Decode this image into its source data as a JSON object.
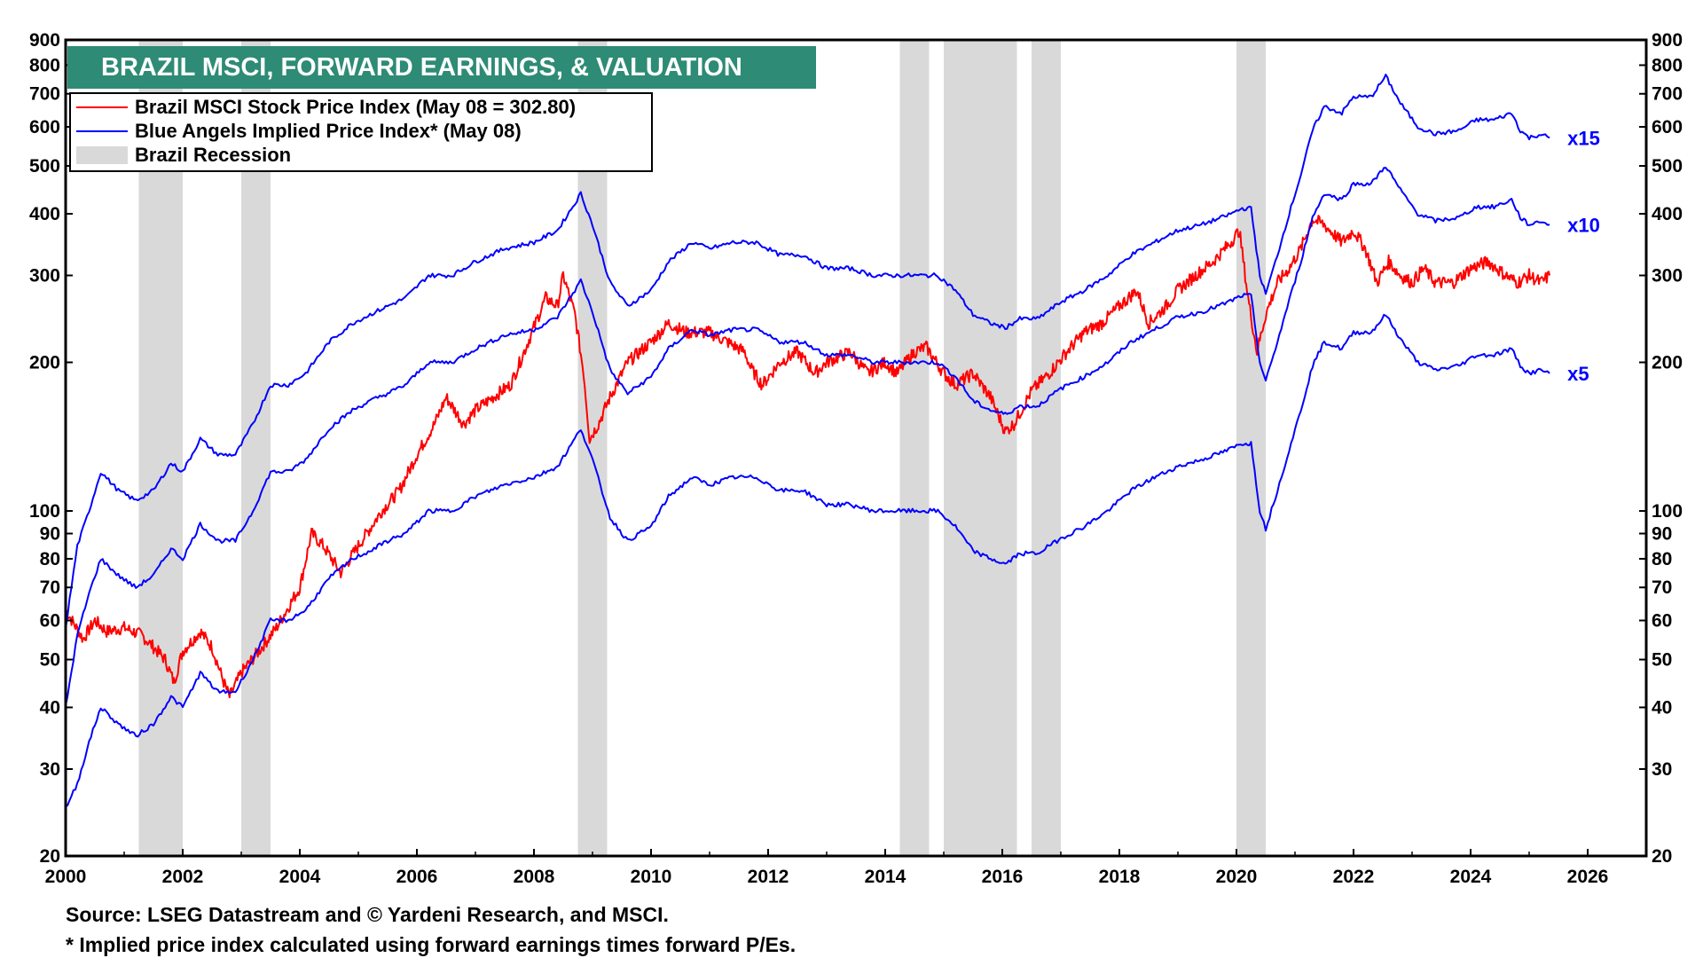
{
  "title": "BRAZIL MSCI, FORWARD EARNINGS, & VALUATION",
  "legend": {
    "items": [
      {
        "label": "Brazil MSCI Stock Price Index (May 08 = 302.80)",
        "color": "#ff0000",
        "kind": "line"
      },
      {
        "label": "Blue Angels Implied Price Index* (May 08)",
        "color": "#0000ff",
        "kind": "line"
      },
      {
        "label": "Brazil Recession",
        "color": "#d9d9d9",
        "kind": "band"
      }
    ]
  },
  "source": "Source: LSEG Datastream and © Yardeni Research, and MSCI.",
  "footnote": "* Implied price index calculated using forward earnings times forward P/Es.",
  "chart_data": {
    "type": "line",
    "title": "BRAZIL MSCI, FORWARD EARNINGS, & VALUATION",
    "y_scale": "log",
    "ylim": [
      20,
      900
    ],
    "xlim": [
      2000,
      2027
    ],
    "x_ticks": [
      2000,
      2002,
      2004,
      2006,
      2008,
      2010,
      2012,
      2014,
      2016,
      2018,
      2020,
      2022,
      2024,
      2026
    ],
    "y_ticks": [
      20,
      30,
      40,
      50,
      60,
      70,
      80,
      90,
      100,
      200,
      300,
      400,
      500,
      600,
      700,
      800,
      900
    ],
    "recessions": [
      [
        2001.25,
        2002.0
      ],
      [
        2003.0,
        2003.5
      ],
      [
        2008.75,
        2009.25
      ],
      [
        2014.25,
        2014.75
      ],
      [
        2015.0,
        2016.25
      ],
      [
        2016.5,
        2017.0
      ],
      [
        2020.0,
        2020.5
      ]
    ],
    "multiple_labels": [
      "x15",
      "x10",
      "x5"
    ],
    "series": [
      {
        "name": "Brazil MSCI Stock Price Index",
        "color": "#ff0000",
        "x": [
          2000.0,
          2000.3,
          2000.5,
          2000.7,
          2001.0,
          2001.3,
          2001.5,
          2001.7,
          2001.85,
          2002.0,
          2002.3,
          2002.5,
          2002.7,
          2002.8,
          2003.0,
          2003.3,
          2003.6,
          2004.0,
          2004.2,
          2004.4,
          2004.7,
          2005.0,
          2005.4,
          2005.7,
          2006.0,
          2006.3,
          2006.5,
          2006.8,
          2007.0,
          2007.3,
          2007.6,
          2007.9,
          2008.2,
          2008.4,
          2008.5,
          2008.7,
          2008.85,
          2008.95,
          2009.1,
          2009.3,
          2009.6,
          2010.0,
          2010.3,
          2010.6,
          2011.0,
          2011.3,
          2011.6,
          2011.7,
          2011.9,
          2012.2,
          2012.5,
          2012.8,
          2013.0,
          2013.4,
          2013.7,
          2014.0,
          2014.2,
          2014.5,
          2014.7,
          2015.0,
          2015.2,
          2015.5,
          2015.8,
          2016.05,
          2016.2,
          2016.5,
          2016.8,
          2017.1,
          2017.4,
          2017.7,
          2018.0,
          2018.3,
          2018.5,
          2018.8,
          2019.0,
          2019.3,
          2019.6,
          2019.9,
          2020.05,
          2020.2,
          2020.35,
          2020.5,
          2020.7,
          2020.9,
          2021.1,
          2021.3,
          2021.5,
          2021.8,
          2022.0,
          2022.2,
          2022.4,
          2022.6,
          2022.8,
          2023.0,
          2023.2,
          2023.4,
          2023.7,
          2024.0,
          2024.3,
          2024.6,
          2024.8,
          2025.0,
          2025.2,
          2025.35
        ],
        "values": [
          63,
          55,
          60,
          57,
          58,
          56,
          53,
          50,
          45,
          52,
          57,
          53,
          45,
          42,
          47,
          52,
          58,
          70,
          90,
          85,
          75,
          85,
          100,
          110,
          130,
          150,
          170,
          150,
          160,
          170,
          180,
          220,
          270,
          260,
          300,
          250,
          190,
          140,
          150,
          170,
          200,
          220,
          240,
          230,
          230,
          220,
          210,
          195,
          180,
          200,
          210,
          190,
          200,
          210,
          190,
          200,
          190,
          210,
          215,
          190,
          180,
          190,
          170,
          145,
          150,
          175,
          190,
          210,
          230,
          240,
          260,
          280,
          240,
          260,
          280,
          300,
          320,
          350,
          370,
          270,
          210,
          250,
          290,
          310,
          340,
          390,
          380,
          350,
          370,
          340,
          290,
          320,
          300,
          290,
          310,
          290,
          290,
          310,
          320,
          300,
          290,
          300,
          290,
          300
        ]
      },
      {
        "name": "Blue Angels Implied Price Index x15",
        "color": "#0000ff",
        "x": [
          2000.0,
          2000.2,
          2000.4,
          2000.6,
          2000.9,
          2001.2,
          2001.5,
          2001.8,
          2002.0,
          2002.3,
          2002.6,
          2002.9,
          2003.2,
          2003.5,
          2003.8,
          2004.1,
          2004.5,
          2004.9,
          2005.2,
          2005.5,
          2005.8,
          2006.2,
          2006.6,
          2007.0,
          2007.5,
          2008.0,
          2008.4,
          2008.7,
          2008.8,
          2009.0,
          2009.3,
          2009.6,
          2010.0,
          2010.3,
          2010.7,
          2011.0,
          2011.4,
          2011.8,
          2012.2,
          2012.6,
          2013.0,
          2013.4,
          2013.8,
          2014.2,
          2014.6,
          2014.9,
          2015.2,
          2015.5,
          2015.8,
          2016.05,
          2016.3,
          2016.6,
          2017.0,
          2017.4,
          2017.8,
          2018.2,
          2018.6,
          2019.0,
          2019.4,
          2019.8,
          2020.1,
          2020.25,
          2020.4,
          2020.5,
          2020.7,
          2020.9,
          2021.1,
          2021.3,
          2021.5,
          2021.8,
          2022.0,
          2022.3,
          2022.55,
          2022.8,
          2023.1,
          2023.4,
          2023.8,
          2024.1,
          2024.4,
          2024.7,
          2024.85,
          2025.0,
          2025.2,
          2025.35
        ],
        "values": [
          58,
          85,
          100,
          120,
          110,
          105,
          110,
          125,
          120,
          140,
          130,
          130,
          150,
          180,
          180,
          190,
          220,
          240,
          250,
          260,
          270,
          300,
          300,
          320,
          340,
          350,
          370,
          420,
          440,
          380,
          290,
          260,
          280,
          320,
          350,
          340,
          350,
          350,
          330,
          330,
          310,
          310,
          300,
          300,
          300,
          300,
          280,
          250,
          240,
          235,
          245,
          245,
          265,
          280,
          300,
          330,
          350,
          370,
          380,
          395,
          410,
          410,
          300,
          275,
          330,
          400,
          480,
          590,
          660,
          640,
          690,
          690,
          760,
          670,
          600,
          580,
          590,
          620,
          620,
          640,
          590,
          570,
          580,
          570
        ]
      },
      {
        "name": "Blue Angels Implied Price Index x10",
        "color": "#0000ff",
        "x": [
          2000.0,
          2000.2,
          2000.4,
          2000.6,
          2000.9,
          2001.2,
          2001.5,
          2001.8,
          2002.0,
          2002.3,
          2002.6,
          2002.9,
          2003.2,
          2003.5,
          2003.8,
          2004.1,
          2004.5,
          2004.9,
          2005.2,
          2005.5,
          2005.8,
          2006.2,
          2006.6,
          2007.0,
          2007.5,
          2008.0,
          2008.4,
          2008.7,
          2008.8,
          2009.0,
          2009.3,
          2009.6,
          2010.0,
          2010.3,
          2010.7,
          2011.0,
          2011.4,
          2011.8,
          2012.2,
          2012.6,
          2013.0,
          2013.4,
          2013.8,
          2014.2,
          2014.6,
          2014.9,
          2015.2,
          2015.5,
          2015.8,
          2016.05,
          2016.3,
          2016.6,
          2017.0,
          2017.4,
          2017.8,
          2018.2,
          2018.6,
          2019.0,
          2019.4,
          2019.8,
          2020.1,
          2020.25,
          2020.4,
          2020.5,
          2020.7,
          2020.9,
          2021.1,
          2021.3,
          2021.5,
          2021.8,
          2022.0,
          2022.3,
          2022.55,
          2022.8,
          2023.1,
          2023.4,
          2023.8,
          2024.1,
          2024.4,
          2024.7,
          2024.85,
          2025.0,
          2025.2,
          2025.35
        ],
        "values": [
          40,
          56,
          68,
          80,
          74,
          70,
          74,
          84,
          80,
          94,
          87,
          87,
          100,
          120,
          120,
          127,
          147,
          160,
          167,
          173,
          180,
          200,
          200,
          213,
          227,
          233,
          247,
          280,
          293,
          253,
          193,
          173,
          187,
          213,
          233,
          227,
          233,
          233,
          220,
          220,
          207,
          207,
          200,
          200,
          200,
          200,
          187,
          167,
          160,
          157,
          163,
          163,
          177,
          187,
          200,
          220,
          233,
          247,
          253,
          263,
          273,
          273,
          200,
          183,
          220,
          267,
          320,
          393,
          440,
          427,
          460,
          460,
          500,
          447,
          400,
          387,
          393,
          413,
          413,
          427,
          393,
          380,
          387,
          380
        ]
      },
      {
        "name": "Blue Angels Implied Price Index x5",
        "color": "#0000ff",
        "x": [
          2000.0,
          2000.2,
          2000.4,
          2000.6,
          2000.9,
          2001.2,
          2001.5,
          2001.8,
          2002.0,
          2002.3,
          2002.6,
          2002.9,
          2003.2,
          2003.5,
          2003.8,
          2004.1,
          2004.5,
          2004.9,
          2005.2,
          2005.5,
          2005.8,
          2006.2,
          2006.6,
          2007.0,
          2007.5,
          2008.0,
          2008.4,
          2008.7,
          2008.8,
          2009.0,
          2009.3,
          2009.6,
          2010.0,
          2010.3,
          2010.7,
          2011.0,
          2011.4,
          2011.8,
          2012.2,
          2012.6,
          2013.0,
          2013.4,
          2013.8,
          2014.2,
          2014.6,
          2014.9,
          2015.2,
          2015.5,
          2015.8,
          2016.05,
          2016.3,
          2016.6,
          2017.0,
          2017.4,
          2017.8,
          2018.2,
          2018.6,
          2019.0,
          2019.4,
          2019.8,
          2020.1,
          2020.25,
          2020.4,
          2020.5,
          2020.7,
          2020.9,
          2021.1,
          2021.3,
          2021.5,
          2021.8,
          2022.0,
          2022.3,
          2022.55,
          2022.8,
          2023.1,
          2023.4,
          2023.8,
          2024.1,
          2024.4,
          2024.7,
          2024.85,
          2025.0,
          2025.2,
          2025.35
        ],
        "values": [
          25,
          28,
          34,
          40,
          37,
          35,
          37,
          42,
          40,
          47,
          43,
          43,
          50,
          60,
          60,
          63,
          73,
          80,
          83,
          87,
          90,
          100,
          100,
          107,
          113,
          117,
          123,
          140,
          147,
          127,
          97,
          87,
          93,
          107,
          117,
          113,
          117,
          117,
          110,
          110,
          103,
          103,
          100,
          100,
          100,
          100,
          93,
          83,
          80,
          78,
          82,
          82,
          88,
          93,
          100,
          110,
          117,
          123,
          127,
          132,
          137,
          137,
          100,
          92,
          110,
          133,
          160,
          197,
          220,
          213,
          230,
          230,
          250,
          223,
          200,
          193,
          197,
          207,
          207,
          213,
          197,
          190,
          193,
          190
        ]
      }
    ]
  }
}
